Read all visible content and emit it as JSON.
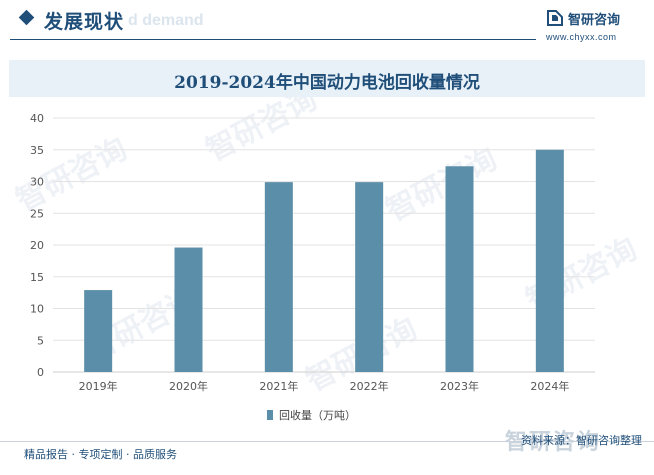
{
  "header": {
    "section_title": "发展现状",
    "ghost_text": "d demand",
    "brand_name": "智研咨询",
    "brand_url": "www.chyxx.com"
  },
  "watermark_text": "智研咨询",
  "footer": {
    "left_text": "精品报告 · 专项定制 · 品质服务",
    "source_text": "资料来源：智研咨询整理",
    "big_brand": "智研咨询"
  },
  "colors": {
    "bar": "#5b8ea8",
    "title": "#1f4e79",
    "band": "#e9f1f8",
    "grid": "#e3e3e3"
  },
  "chart_data": {
    "type": "bar",
    "title": "2019-2024年中国动力电池回收量情况",
    "categories": [
      "2019年",
      "2020年",
      "2021年",
      "2022年",
      "2023年",
      "2024年"
    ],
    "series": [
      {
        "name": "回收量（万吨）",
        "values": [
          12.9,
          19.6,
          29.9,
          29.9,
          32.4,
          35.0
        ]
      }
    ],
    "ylim": [
      0,
      40
    ],
    "yticks": [
      0,
      5,
      10,
      15,
      20,
      25,
      30,
      35,
      40
    ],
    "grid": true,
    "legend": "bottom"
  }
}
